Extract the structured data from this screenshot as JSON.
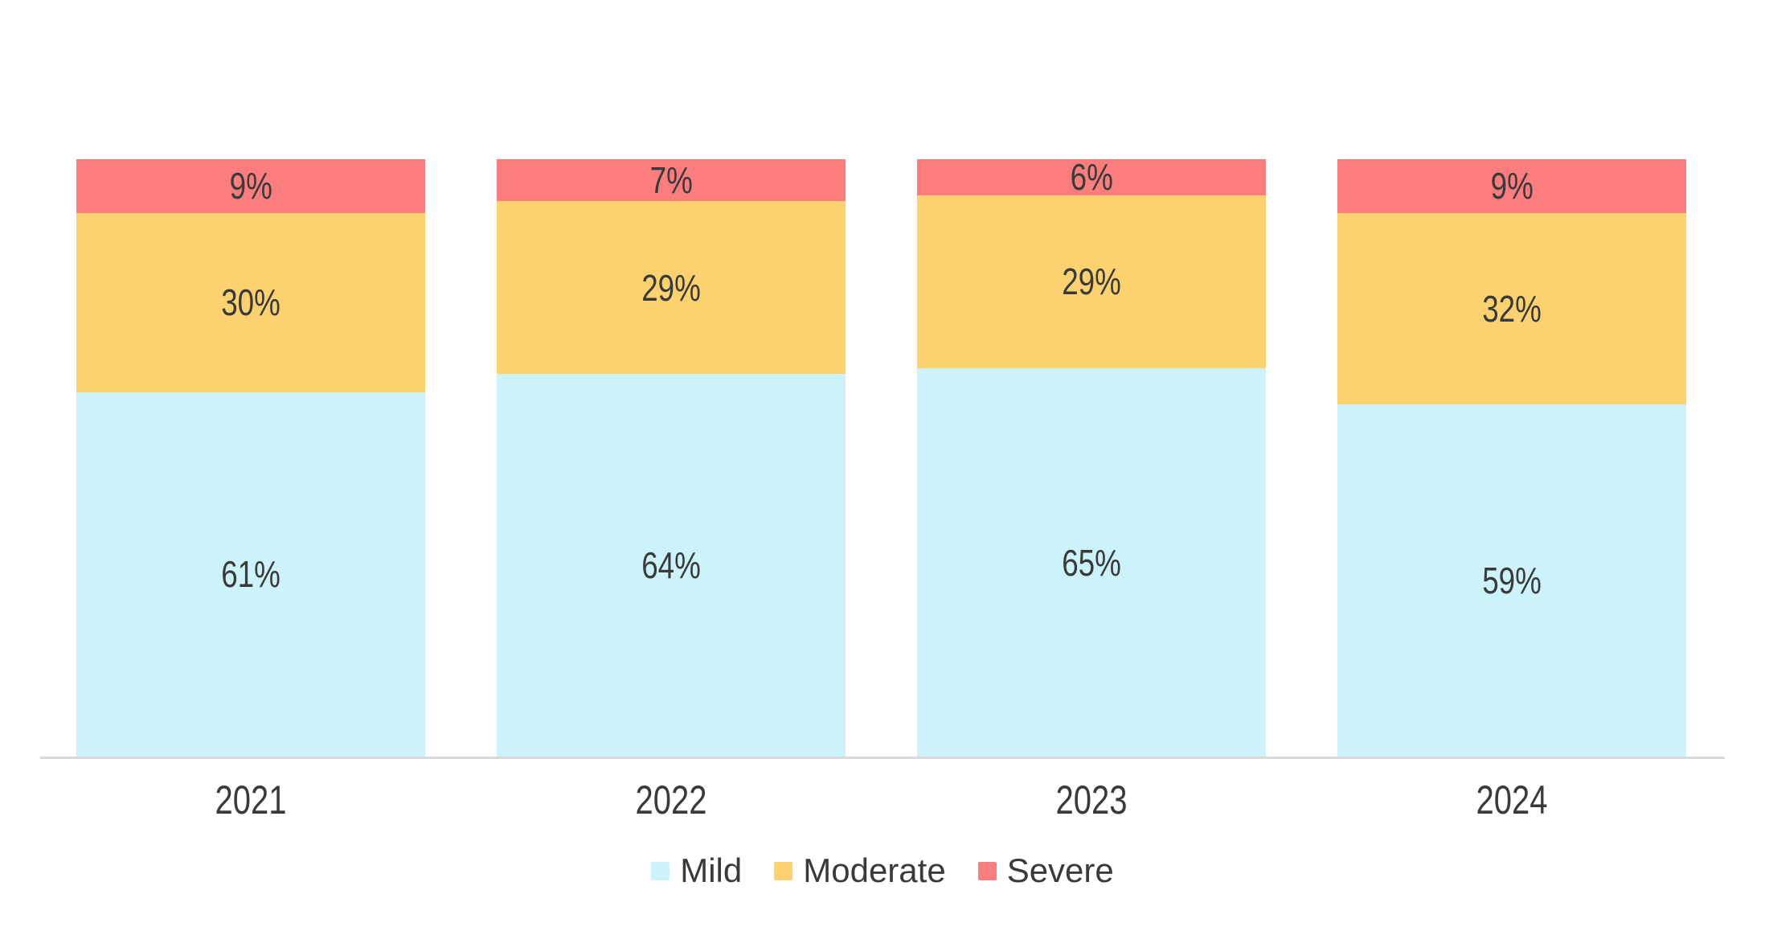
{
  "chart_data": {
    "type": "bar",
    "variant": "stacked-100-percent",
    "title": "",
    "xlabel": "",
    "ylabel": "",
    "ylim": [
      0,
      100
    ],
    "grid": false,
    "legend_position": "bottom-center",
    "value_label_format": "{value}%",
    "categories": [
      "2021",
      "2022",
      "2023",
      "2024"
    ],
    "series": [
      {
        "name": "Mild",
        "color": "#CDF3FA",
        "values": [
          61,
          64,
          65,
          59
        ]
      },
      {
        "name": "Moderate",
        "color": "#FCD271",
        "values": [
          30,
          29,
          29,
          32
        ]
      },
      {
        "name": "Severe",
        "color": "#FC7D7D",
        "values": [
          9,
          7,
          6,
          9
        ]
      }
    ],
    "colors": {
      "axis_line": "#D9D9D9",
      "label_text": "#3A3A3A",
      "background": "#FFFFFF"
    }
  }
}
